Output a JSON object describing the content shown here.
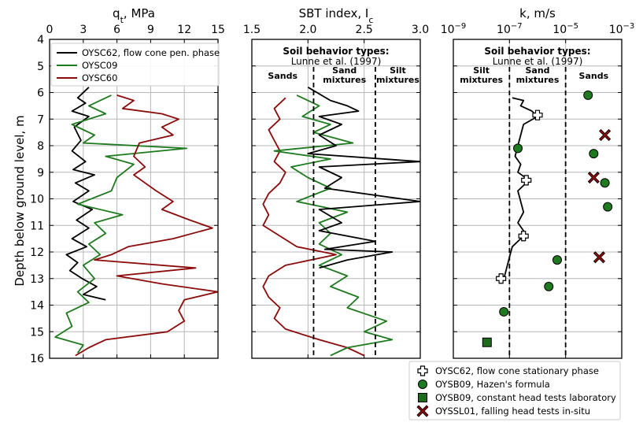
{
  "figure": {
    "y_axis_label": "Depth below ground level, m",
    "depth_ticks": [
      "4",
      "5",
      "6",
      "7",
      "8",
      "9",
      "10",
      "11",
      "12",
      "13",
      "14",
      "15",
      "16"
    ]
  },
  "colors": {
    "OYSC62": "#000000",
    "OYSC09": "#1e7a1e",
    "OYSC60": "#8b0a0a",
    "grid": "#b8b8b8",
    "hazen": "#1e7a1e",
    "lab": "#1e6b1e",
    "insitu": "#8b0a0a"
  },
  "chart_data": [
    {
      "type": "line",
      "panel": "qt",
      "title": "q_t, MPa",
      "title_main": "q",
      "title_sub": "t",
      "title_rest": ", MPa",
      "xlim": [
        0,
        15
      ],
      "ylim": [
        16,
        4
      ],
      "x_ticks": [
        0,
        3,
        6,
        9,
        12,
        15
      ],
      "x_tick_labels": [
        "0",
        "3",
        "6",
        "9",
        "12",
        "15"
      ],
      "legend": [
        "OYSC62, flow cone pen. phase",
        "OYSC09",
        "OYSC60"
      ],
      "series": [
        {
          "name": "OYSC62",
          "color": "#000000",
          "points": [
            [
              3.5,
              5.8
            ],
            [
              2.5,
              6.2
            ],
            [
              3.2,
              6.4
            ],
            [
              2.0,
              6.7
            ],
            [
              3.5,
              6.9
            ],
            [
              2.2,
              7.3
            ],
            [
              2.8,
              7.8
            ],
            [
              2.0,
              8.2
            ],
            [
              3.2,
              8.6
            ],
            [
              2.1,
              8.9
            ],
            [
              4.0,
              9.1
            ],
            [
              2.3,
              9.4
            ],
            [
              3.5,
              9.7
            ],
            [
              2.1,
              10.1
            ],
            [
              3.8,
              10.4
            ],
            [
              2.4,
              10.8
            ],
            [
              3.5,
              11.1
            ],
            [
              2.0,
              11.5
            ],
            [
              3.3,
              11.8
            ],
            [
              1.5,
              12.1
            ],
            [
              2.5,
              12.4
            ],
            [
              1.8,
              12.7
            ],
            [
              2.9,
              13.0
            ],
            [
              4.2,
              13.3
            ],
            [
              3.0,
              13.6
            ],
            [
              5.0,
              13.8
            ]
          ]
        },
        {
          "name": "OYSC09",
          "color": "#1e7a1e",
          "points": [
            [
              5.5,
              6.1
            ],
            [
              3.5,
              6.5
            ],
            [
              5.0,
              6.8
            ],
            [
              2.0,
              7.2
            ],
            [
              4.0,
              7.6
            ],
            [
              3.0,
              7.9
            ],
            [
              12.2,
              8.1
            ],
            [
              5.0,
              8.4
            ],
            [
              7.5,
              8.7
            ],
            [
              6.0,
              9.2
            ],
            [
              5.5,
              9.7
            ],
            [
              2.5,
              10.2
            ],
            [
              6.5,
              10.6
            ],
            [
              4.0,
              10.9
            ],
            [
              5.0,
              11.3
            ],
            [
              3.5,
              11.7
            ],
            [
              4.5,
              12.1
            ],
            [
              3.0,
              12.5
            ],
            [
              4.0,
              13.0
            ],
            [
              2.5,
              13.5
            ],
            [
              3.5,
              13.9
            ],
            [
              1.5,
              14.3
            ],
            [
              2.0,
              14.8
            ],
            [
              0.5,
              15.2
            ],
            [
              3.0,
              15.5
            ],
            [
              2.5,
              15.8
            ]
          ]
        },
        {
          "name": "OYSC60",
          "color": "#8b0a0a",
          "points": [
            [
              6.0,
              6.1
            ],
            [
              7.5,
              6.3
            ],
            [
              6.5,
              6.6
            ],
            [
              10.0,
              6.8
            ],
            [
              11.5,
              7.0
            ],
            [
              10.0,
              7.3
            ],
            [
              11.0,
              7.6
            ],
            [
              8.0,
              7.9
            ],
            [
              7.5,
              8.4
            ],
            [
              8.5,
              8.8
            ],
            [
              7.5,
              9.1
            ],
            [
              8.5,
              9.4
            ],
            [
              9.5,
              9.7
            ],
            [
              11.0,
              10.1
            ],
            [
              10.0,
              10.4
            ],
            [
              12.5,
              10.8
            ],
            [
              14.5,
              11.1
            ],
            [
              11.0,
              11.5
            ],
            [
              7.0,
              11.8
            ],
            [
              5.5,
              12.1
            ],
            [
              4.0,
              12.3
            ],
            [
              13.0,
              12.6
            ],
            [
              6.0,
              12.9
            ],
            [
              10.0,
              13.2
            ],
            [
              15.0,
              13.5
            ],
            [
              12.0,
              13.8
            ],
            [
              11.5,
              14.2
            ],
            [
              12.0,
              14.6
            ],
            [
              10.5,
              15.0
            ],
            [
              5.0,
              15.3
            ],
            [
              3.5,
              15.6
            ],
            [
              2.3,
              15.9
            ]
          ]
        }
      ]
    },
    {
      "type": "line",
      "panel": "sbt",
      "title": "SBT index, I_c",
      "title_main": "SBT index, I",
      "title_sub": "c",
      "xlim": [
        1.5,
        3.0
      ],
      "ylim": [
        16,
        4
      ],
      "x_ticks": [
        1.5,
        2.0,
        2.5,
        3.0
      ],
      "x_tick_labels": [
        "1.5",
        "2.0",
        "2.5",
        "3.0"
      ],
      "boundaries": [
        2.05,
        2.6
      ],
      "box_title": "Soil behavior types:",
      "box_subtitle": "Lunne et al. (1997)",
      "zones": [
        {
          "line1": "Sands",
          "line2": ""
        },
        {
          "line1": "Sand",
          "line2": "mixtures"
        },
        {
          "line1": "Silt",
          "line2": "mixtures"
        }
      ],
      "series": [
        {
          "name": "OYSC62",
          "color": "#000000",
          "points": [
            [
              2.0,
              5.8
            ],
            [
              2.2,
              6.3
            ],
            [
              2.35,
              6.5
            ],
            [
              2.45,
              6.7
            ],
            [
              2.1,
              6.9
            ],
            [
              2.3,
              7.2
            ],
            [
              2.1,
              7.6
            ],
            [
              2.25,
              8.0
            ],
            [
              2.0,
              8.3
            ],
            [
              3.0,
              8.6
            ],
            [
              2.1,
              8.8
            ],
            [
              2.3,
              9.2
            ],
            [
              2.15,
              9.6
            ],
            [
              3.0,
              10.1
            ],
            [
              2.1,
              10.4
            ],
            [
              2.3,
              10.9
            ],
            [
              2.1,
              11.2
            ],
            [
              2.6,
              11.6
            ],
            [
              2.15,
              11.9
            ],
            [
              2.75,
              12.0
            ],
            [
              2.35,
              12.3
            ],
            [
              2.1,
              12.6
            ]
          ]
        },
        {
          "name": "OYSC09",
          "color": "#1e7a1e",
          "points": [
            [
              1.9,
              6.1
            ],
            [
              2.1,
              6.5
            ],
            [
              1.95,
              6.9
            ],
            [
              2.2,
              7.2
            ],
            [
              2.05,
              7.5
            ],
            [
              2.4,
              7.9
            ],
            [
              1.7,
              8.2
            ],
            [
              2.2,
              8.5
            ],
            [
              1.85,
              8.8
            ],
            [
              2.0,
              9.2
            ],
            [
              2.2,
              9.6
            ],
            [
              1.9,
              10.1
            ],
            [
              2.35,
              10.5
            ],
            [
              2.1,
              10.9
            ],
            [
              2.2,
              11.3
            ],
            [
              2.1,
              11.7
            ],
            [
              2.3,
              12.1
            ],
            [
              2.1,
              12.5
            ],
            [
              2.35,
              12.9
            ],
            [
              2.2,
              13.3
            ],
            [
              2.45,
              13.7
            ],
            [
              2.35,
              14.1
            ],
            [
              2.7,
              14.6
            ],
            [
              2.5,
              15.0
            ],
            [
              2.75,
              15.3
            ],
            [
              2.35,
              15.6
            ],
            [
              2.2,
              15.9
            ]
          ]
        },
        {
          "name": "OYSC60",
          "color": "#8b0a0a",
          "points": [
            [
              1.8,
              6.2
            ],
            [
              1.7,
              6.6
            ],
            [
              1.75,
              7.0
            ],
            [
              1.65,
              7.4
            ],
            [
              1.7,
              7.8
            ],
            [
              1.75,
              8.2
            ],
            [
              1.7,
              8.6
            ],
            [
              1.8,
              9.0
            ],
            [
              1.75,
              9.4
            ],
            [
              1.65,
              9.8
            ],
            [
              1.6,
              10.2
            ],
            [
              1.65,
              10.6
            ],
            [
              1.6,
              11.0
            ],
            [
              1.75,
              11.4
            ],
            [
              1.9,
              11.8
            ],
            [
              2.25,
              12.1
            ],
            [
              1.8,
              12.5
            ],
            [
              1.65,
              12.9
            ],
            [
              1.6,
              13.3
            ],
            [
              1.65,
              13.7
            ],
            [
              1.75,
              14.1
            ],
            [
              1.7,
              14.5
            ],
            [
              1.8,
              14.9
            ],
            [
              2.1,
              15.3
            ],
            [
              2.35,
              15.6
            ],
            [
              2.5,
              15.9
            ]
          ]
        }
      ]
    },
    {
      "type": "scatter",
      "panel": "k",
      "title": "k, m/s",
      "x_scale": "log",
      "xlim_exponent": [
        -9,
        -3
      ],
      "ylim": [
        16,
        4
      ],
      "x_tick_exponents": [
        -9,
        -7,
        -5,
        -3
      ],
      "x_tick_bases": [
        "10",
        "10",
        "10",
        "10"
      ],
      "x_tick_powers": [
        "−9",
        "−7",
        "−5",
        "−3"
      ],
      "boundaries_exponent": [
        -7.0,
        -5.0
      ],
      "box_title": "Soil behavior types:",
      "box_subtitle": "Lunne et al. (1997)",
      "zones": [
        {
          "line1": "Silt",
          "line2": "mixtures"
        },
        {
          "line1": "Sand",
          "line2": "mixtures"
        },
        {
          "line1": "Sands",
          "line2": ""
        }
      ],
      "profile": {
        "name": "OYSC62 log k",
        "color": "#000000",
        "points": [
          [
            -6.9,
            6.2
          ],
          [
            -6.5,
            6.3
          ],
          [
            -6.6,
            6.5
          ],
          [
            -6.2,
            6.7
          ],
          [
            -6.0,
            6.9
          ],
          [
            -6.5,
            7.2
          ],
          [
            -6.6,
            7.6
          ],
          [
            -6.7,
            8.0
          ],
          [
            -6.8,
            8.4
          ],
          [
            -6.6,
            8.7
          ],
          [
            -6.7,
            9.0
          ],
          [
            -6.3,
            9.3
          ],
          [
            -6.7,
            9.7
          ],
          [
            -6.6,
            10.1
          ],
          [
            -6.5,
            10.5
          ],
          [
            -6.7,
            10.9
          ],
          [
            -6.5,
            11.2
          ],
          [
            -6.6,
            11.5
          ],
          [
            -6.9,
            11.8
          ],
          [
            -7.0,
            12.2
          ],
          [
            -7.1,
            12.6
          ],
          [
            -7.2,
            13.0
          ]
        ]
      },
      "series": [
        {
          "name": "OYSC62, flow cone stationary phase",
          "marker": "plus",
          "points": [
            [
              -6.0,
              6.85
            ],
            [
              -6.4,
              9.3
            ],
            [
              -6.5,
              11.4
            ],
            [
              -7.3,
              13.0
            ]
          ]
        },
        {
          "name": "OYSB09, Hazen's formula",
          "marker": "circle",
          "points": [
            [
              -4.2,
              6.1
            ],
            [
              -4.0,
              8.3
            ],
            [
              -3.6,
              9.4
            ],
            [
              -3.5,
              10.3
            ],
            [
              -6.7,
              8.1
            ],
            [
              -5.3,
              12.3
            ],
            [
              -5.6,
              13.3
            ],
            [
              -7.2,
              14.25
            ]
          ]
        },
        {
          "name": "OYSB09, constant head tests laboratory",
          "marker": "square",
          "points": [
            [
              -7.8,
              15.4
            ]
          ]
        },
        {
          "name": "OYSSL01, falling head tests in-situ",
          "marker": "cross",
          "points": [
            [
              -3.6,
              7.6
            ],
            [
              -4.0,
              9.2
            ],
            [
              -3.8,
              12.2
            ]
          ]
        }
      ]
    }
  ]
}
